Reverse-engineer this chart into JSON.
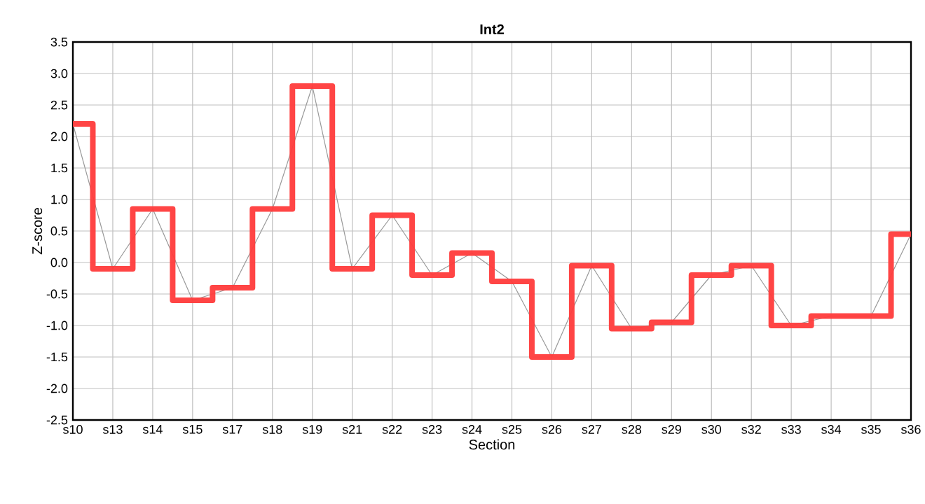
{
  "chart_data": {
    "type": "step",
    "title": "Int2",
    "xlabel": "Section",
    "ylabel": "Z-score",
    "categories": [
      "s10",
      "s13",
      "s14",
      "s15",
      "s17",
      "s18",
      "s19",
      "s21",
      "s22",
      "s23",
      "s24",
      "s25",
      "s26",
      "s27",
      "s28",
      "s29",
      "s30",
      "s32",
      "s33",
      "s34",
      "s35",
      "s36"
    ],
    "series": [
      {
        "type": "line",
        "color": "#999999",
        "values": [
          2.2,
          -0.1,
          0.85,
          -0.6,
          -0.4,
          0.85,
          2.8,
          -0.1,
          0.75,
          -0.2,
          0.15,
          -0.3,
          -1.5,
          -0.05,
          -1.05,
          -0.95,
          -0.2,
          -0.05,
          -1.0,
          -0.85,
          -0.85,
          0.45
        ]
      },
      {
        "color": "#ff3b3b",
        "values": [
          2.2,
          -0.1,
          0.85,
          -0.6,
          -0.4,
          0.85,
          2.8,
          -0.1,
          0.75,
          -0.2,
          0.15,
          -0.3,
          -1.5,
          -0.05,
          -1.05,
          -0.95,
          -0.2,
          -0.05,
          -1.0,
          -0.85,
          -0.85,
          0.45
        ]
      }
    ],
    "ylim": [
      -2.5,
      3.5
    ],
    "yticks": [
      -2.5,
      {
        "value": -2,
        "label": "-2.0"
      },
      -1.5,
      {
        "value": -1,
        "label": "-1.0"
      },
      -0.5,
      {
        "value": 0,
        "label": "0.0"
      },
      0.5,
      {
        "value": 1,
        "label": "1.0"
      },
      1.5,
      {
        "value": 2,
        "label": "2.0"
      },
      2.5,
      {
        "value": 3,
        "label": "3.0"
      },
      3.5
    ],
    "grid": true,
    "marker": "none"
  }
}
